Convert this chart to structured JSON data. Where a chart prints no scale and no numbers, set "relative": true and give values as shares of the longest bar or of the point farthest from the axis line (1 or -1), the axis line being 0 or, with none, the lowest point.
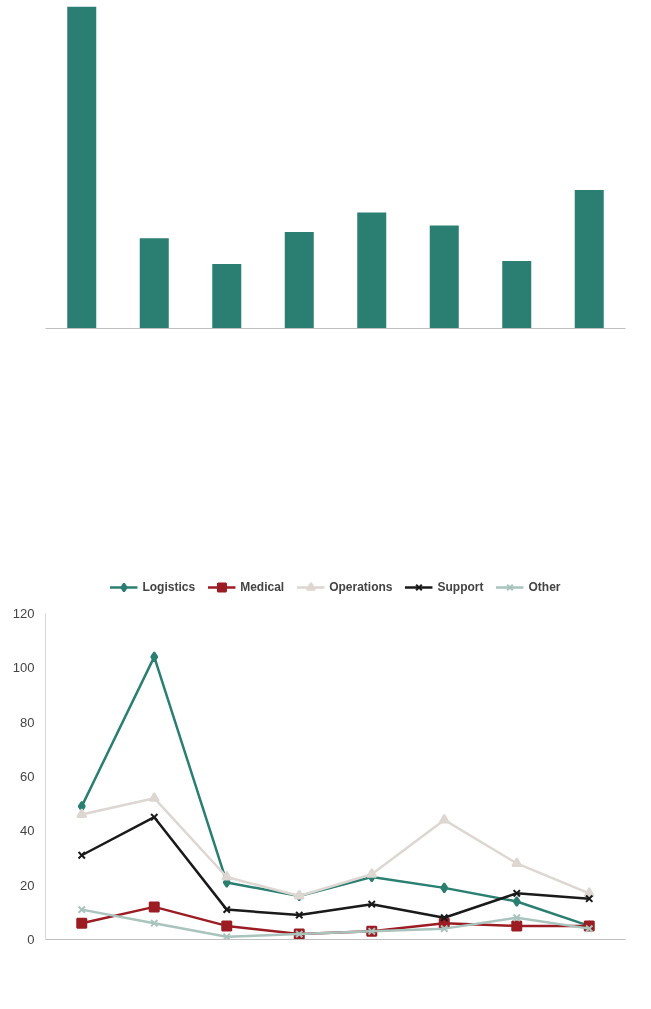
{
  "chart_data": [
    {
      "type": "bar",
      "relative": true,
      "categories": [
        null,
        null,
        null,
        null,
        null,
        null,
        null,
        null
      ],
      "values": [
        1,
        0.28,
        0.2,
        0.3,
        0.36,
        0.32,
        0.21,
        0.43
      ],
      "color": "#2a7f72",
      "tick_labels": false,
      "grid": false
    },
    {
      "type": "line",
      "categories": [
        null,
        null,
        null,
        null,
        null,
        null,
        null,
        null
      ],
      "ylim": [
        0,
        120
      ],
      "yticks": [
        0,
        20,
        40,
        60,
        80,
        100,
        120
      ],
      "tick_labels": "y",
      "grid": false,
      "legend": "top",
      "line_style": "solid",
      "series": [
        {
          "name": "Logistics",
          "color": "#2a7f72",
          "marker": "diamond",
          "values": [
            49,
            104,
            21,
            16,
            23,
            19,
            14,
            5
          ]
        },
        {
          "name": "Medical",
          "color": "#9b1c22",
          "marker": "square",
          "values": [
            6,
            12,
            5,
            2,
            3,
            6,
            5,
            5
          ]
        },
        {
          "name": "Operations",
          "color": "#ddd6d1",
          "marker": "triangle",
          "values": [
            46,
            52,
            23,
            16,
            24,
            44,
            28,
            17
          ]
        },
        {
          "name": "Support",
          "color": "#1a1a1a",
          "marker": "cross",
          "values": [
            31,
            45,
            11,
            9,
            13,
            8,
            17,
            15
          ]
        },
        {
          "name": "Other",
          "color": "#a9c4bd",
          "marker": "cross",
          "values": [
            11,
            6,
            1,
            2,
            3,
            4,
            8,
            4
          ]
        }
      ]
    }
  ]
}
